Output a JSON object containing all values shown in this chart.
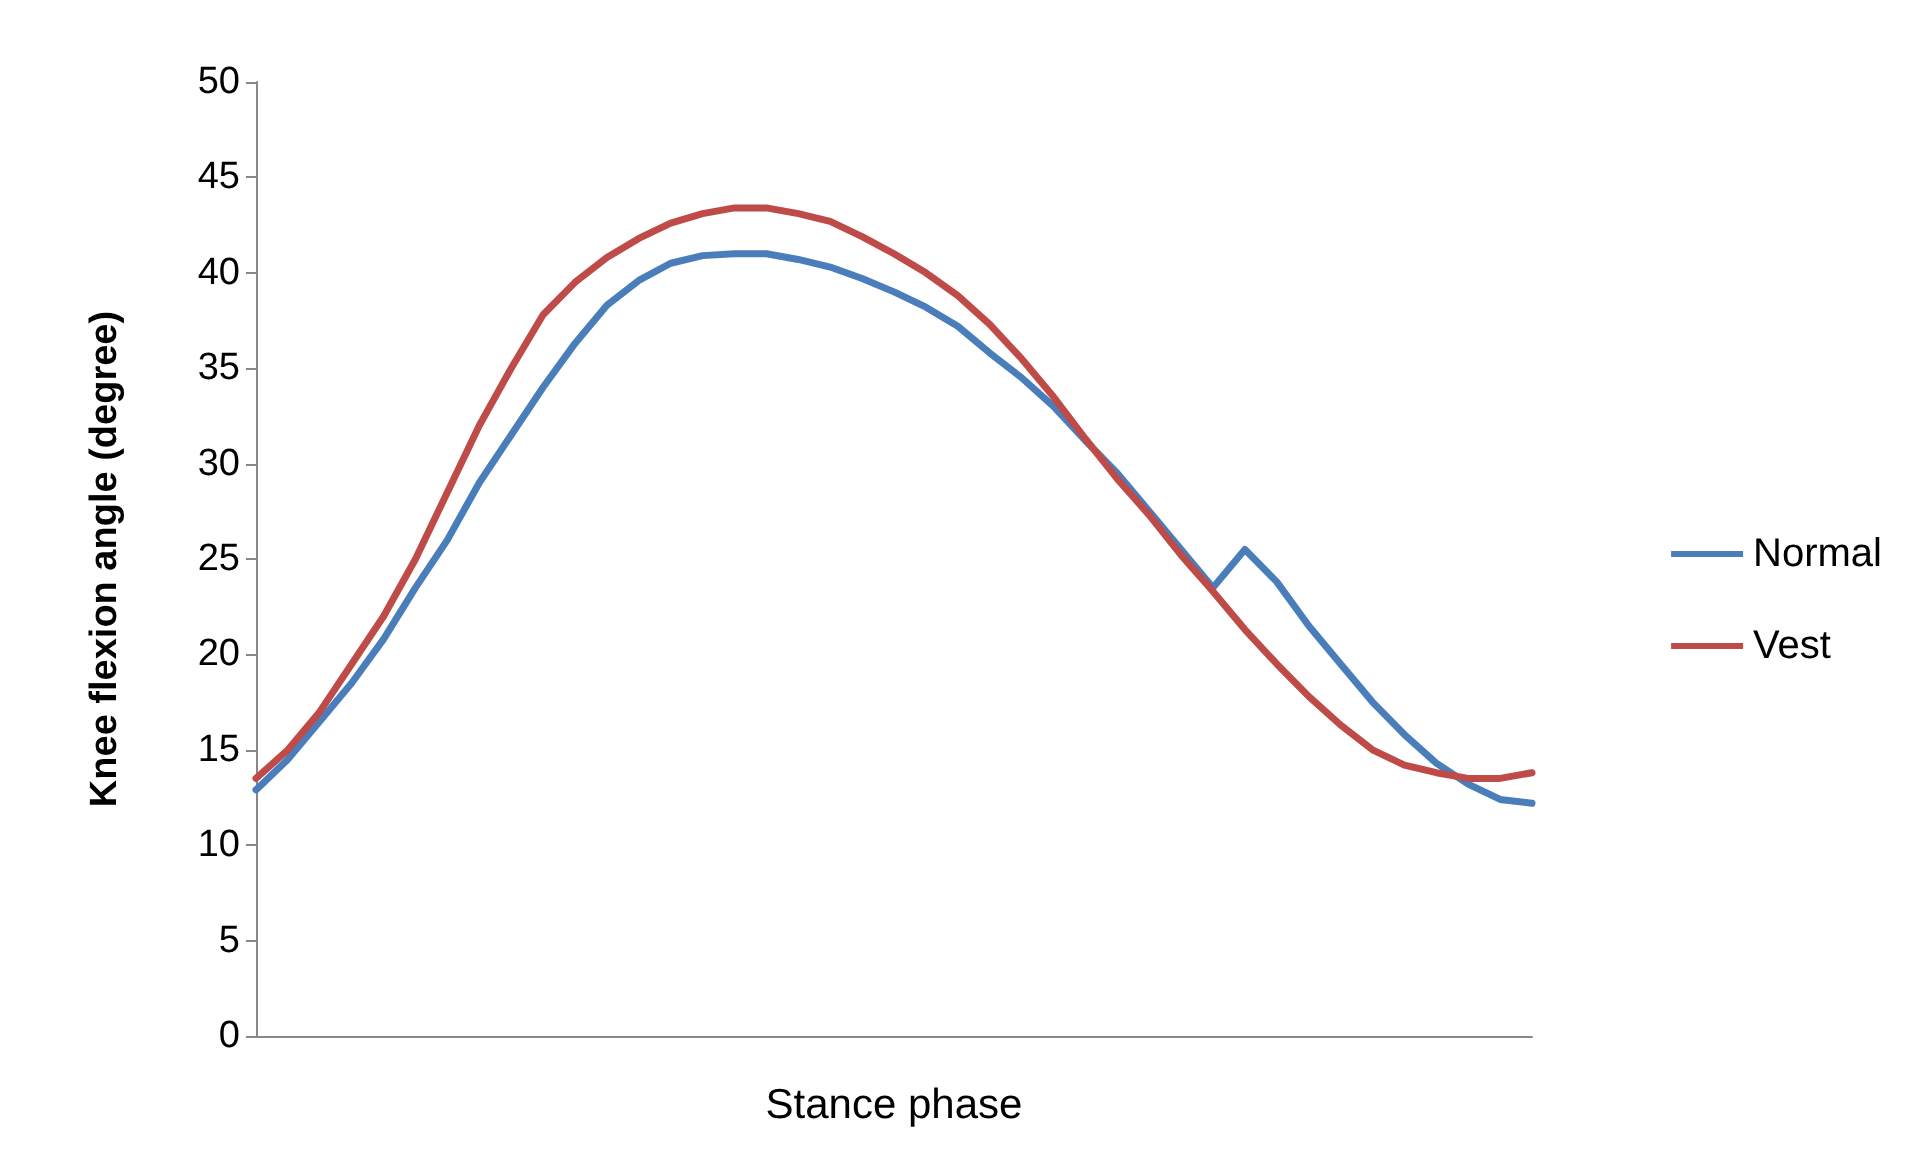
{
  "chart_data": {
    "type": "line",
    "xlabel": "Stance phase",
    "ylabel": "Knee flexion angle (degree)",
    "categories": [
      null,
      null,
      null,
      null,
      null,
      null,
      null,
      null,
      null,
      null,
      null,
      null,
      null,
      null,
      null,
      null,
      null,
      null,
      null,
      null,
      null,
      null,
      null,
      null,
      null,
      null,
      null,
      null,
      null,
      null,
      null,
      null,
      null,
      null,
      null,
      null,
      null,
      null,
      null,
      null,
      null
    ],
    "series": [
      {
        "name": "Normal",
        "color": "#4a7ebb",
        "values": [
          12.9,
          14.5,
          16.5,
          18.5,
          20.8,
          23.5,
          26,
          29,
          31.5,
          34,
          36.3,
          38.3,
          39.6,
          40.5,
          40.9,
          41.0,
          41.0,
          40.7,
          40.3,
          39.7,
          39.0,
          38.2,
          37.2,
          35.8,
          34.5,
          33.0,
          31.2,
          29.5,
          27.5,
          25.5,
          23.5,
          25.5,
          23.8,
          21.5,
          19.5,
          17.5,
          15.8,
          14.3,
          13.2,
          12.4,
          12.2
        ]
      },
      {
        "name": "Vest",
        "color": "#be4b48",
        "values": [
          13.5,
          15,
          17,
          19.5,
          22,
          25,
          28.5,
          32,
          35,
          37.8,
          39.5,
          40.8,
          41.8,
          42.6,
          43.1,
          43.4,
          43.4,
          43.1,
          42.7,
          41.9,
          41.0,
          40.0,
          38.8,
          37.3,
          35.5,
          33.5,
          31.3,
          29.2,
          27.3,
          25.2,
          23.3,
          21.3,
          19.5,
          17.8,
          16.3,
          15.0,
          14.2,
          13.8,
          13.5,
          13.5,
          13.8
        ]
      }
    ],
    "ylim": [
      0,
      50
    ],
    "yticks": [
      0,
      5,
      10,
      15,
      20,
      25,
      30,
      35,
      40,
      45,
      50
    ],
    "grid": false,
    "legend": "right",
    "marker": "none",
    "line_style": "solid"
  }
}
